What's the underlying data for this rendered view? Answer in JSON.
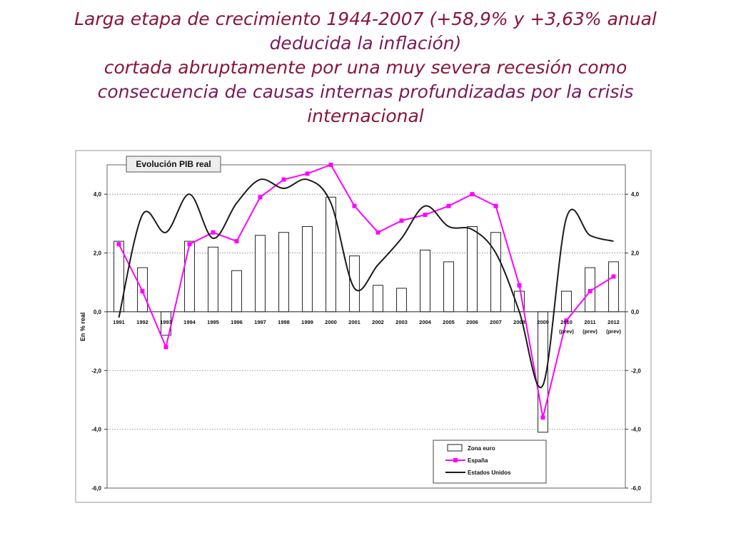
{
  "slide": {
    "title_lines": [
      "Larga etapa de crecimiento 1944-2007 (+58,9% y +3,63% anual",
      "deducida la inflación)",
      "cortada abruptamente por una muy severa recesión como",
      "consecuencia de causas internas profundizadas por la crisis",
      "internacional"
    ]
  },
  "chart_data": {
    "type": "bar",
    "title": "Evolución PIB real",
    "ylabel": "En % real",
    "ylim": [
      -6,
      5
    ],
    "yticks": [
      -6,
      -4,
      -2,
      0,
      2,
      4
    ],
    "ytick_labels": [
      "-6,0",
      "-4,0",
      "-2,0",
      "0,0",
      "2,0",
      "4,0"
    ],
    "grid": true,
    "legend_position": "bottom-right",
    "categories": [
      "1991",
      "1992",
      "1993",
      "1994",
      "1995",
      "1996",
      "1997",
      "1998",
      "1999",
      "2000",
      "2001",
      "2002",
      "2003",
      "2004",
      "2005",
      "2006",
      "2007",
      "2008",
      "2009",
      "2010",
      "2011",
      "2012"
    ],
    "category_sublabels": [
      "",
      "",
      "",
      "",
      "",
      "",
      "",
      "",
      "",
      "",
      "",
      "",
      "",
      "",
      "",
      "",
      "",
      "",
      "",
      "(prev)",
      "(prev)",
      "(prev)"
    ],
    "series": [
      {
        "name": "Zona euro",
        "type": "bar",
        "color": "#ffffff",
        "values": [
          2.4,
          1.5,
          -0.8,
          2.4,
          2.2,
          1.4,
          2.6,
          2.7,
          2.9,
          3.9,
          1.9,
          0.9,
          0.8,
          2.1,
          1.7,
          2.9,
          2.7,
          0.7,
          -4.1,
          0.7,
          1.5,
          1.7
        ]
      },
      {
        "name": "España",
        "type": "line",
        "color": "#ff00ff",
        "marker": "square",
        "values": [
          2.3,
          0.7,
          -1.2,
          2.3,
          2.7,
          2.4,
          3.9,
          4.5,
          4.7,
          5.0,
          3.6,
          2.7,
          3.1,
          3.3,
          3.6,
          4.0,
          3.6,
          0.9,
          -3.6,
          -0.3,
          0.7,
          1.2
        ]
      },
      {
        "name": "Estados Unidos",
        "type": "line",
        "color": "#1a1a1a",
        "smooth": true,
        "values": [
          -0.2,
          3.3,
          2.7,
          4.0,
          2.5,
          3.7,
          4.5,
          4.2,
          4.5,
          3.7,
          0.8,
          1.6,
          2.5,
          3.6,
          2.9,
          2.8,
          2.0,
          0.0,
          -2.5,
          3.2,
          2.6,
          2.4
        ]
      }
    ]
  }
}
